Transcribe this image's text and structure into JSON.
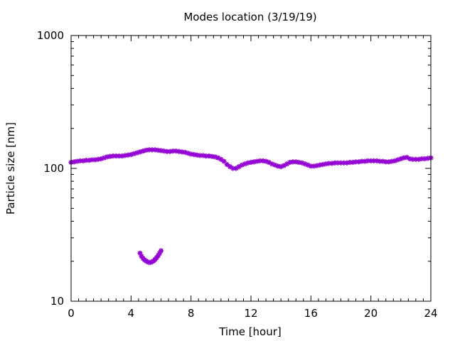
{
  "chart_data": {
    "type": "scatter",
    "title": "Modes location (3/19/19)",
    "xlabel": "Time [hour]",
    "ylabel": "Particle size [nm]",
    "xlim": [
      0,
      24
    ],
    "ylim": [
      10,
      1000
    ],
    "yscale": "log",
    "xticks": [
      0,
      4,
      8,
      12,
      16,
      20,
      24
    ],
    "xtick_labels": [
      "0",
      "4",
      "8",
      "12",
      "16",
      "20",
      "24"
    ],
    "yticks": [
      10,
      100,
      1000
    ],
    "ytick_labels": [
      "10",
      "100",
      "1000"
    ],
    "grid": false,
    "marker_color": "#9400D3",
    "series": [
      {
        "x": [
          0.0,
          0.2,
          0.4,
          0.6,
          0.8,
          1.0,
          1.2,
          1.4,
          1.6,
          1.8,
          2.0,
          2.2,
          2.4,
          2.6,
          2.8,
          3.0,
          3.2,
          3.4,
          3.6,
          3.8,
          4.0,
          4.2,
          4.4,
          4.6,
          4.8,
          5.0,
          5.2,
          5.4,
          5.6,
          5.8,
          6.0,
          6.2,
          6.4,
          6.6,
          6.8,
          7.0,
          7.2,
          7.4,
          7.6,
          7.8,
          8.0,
          8.2,
          8.4,
          8.6,
          8.8,
          9.0,
          9.2,
          9.4,
          9.6,
          9.8,
          10.0,
          10.2,
          10.4,
          10.6,
          10.8,
          11.0,
          11.2,
          11.4,
          11.6,
          11.8,
          12.0,
          12.2,
          12.4,
          12.6,
          12.8,
          13.0,
          13.2,
          13.4,
          13.6,
          13.8,
          14.0,
          14.2,
          14.4,
          14.6,
          14.8,
          15.0,
          15.2,
          15.4,
          15.6,
          15.8,
          16.0,
          16.2,
          16.4,
          16.6,
          16.8,
          17.0,
          17.2,
          17.4,
          17.6,
          17.8,
          18.0,
          18.2,
          18.4,
          18.6,
          18.8,
          19.0,
          19.2,
          19.4,
          19.6,
          19.8,
          20.0,
          20.2,
          20.4,
          20.6,
          20.8,
          21.0,
          21.2,
          21.4,
          21.6,
          21.8,
          22.0,
          22.2,
          22.4,
          22.6,
          22.8,
          23.0,
          23.2,
          23.4,
          23.6,
          23.8,
          24.0
        ],
        "y": [
          111,
          112,
          113,
          114,
          114,
          115,
          115,
          116,
          116,
          117,
          118,
          120,
          122,
          123,
          124,
          124,
          124,
          124,
          125,
          126,
          127,
          129,
          131,
          133,
          135,
          137,
          138,
          138,
          138,
          137,
          136,
          135,
          134,
          134,
          135,
          135,
          134,
          133,
          132,
          130,
          128,
          127,
          126,
          125,
          125,
          124,
          124,
          123,
          122,
          120,
          117,
          113,
          107,
          103,
          100,
          100,
          103,
          106,
          108,
          110,
          111,
          112,
          113,
          114,
          114,
          113,
          111,
          108,
          106,
          104,
          103,
          105,
          108,
          111,
          112,
          112,
          111,
          110,
          108,
          106,
          104,
          104,
          105,
          106,
          107,
          108,
          109,
          109,
          110,
          110,
          110,
          110,
          110,
          111,
          111,
          112,
          112,
          113,
          113,
          114,
          114,
          114,
          114,
          113,
          113,
          112,
          112,
          113,
          114,
          116,
          118,
          120,
          121,
          118,
          117,
          117,
          117,
          118,
          118,
          119,
          120
        ],
        "_note_unused": ""
      },
      {
        "x": [
          4.6,
          4.7,
          4.8,
          4.9,
          5.0,
          5.1,
          5.2,
          5.3,
          5.4,
          5.5,
          5.6,
          5.7,
          5.8,
          5.9,
          6.0
        ],
        "y": [
          23.0,
          21.8,
          21.0,
          20.5,
          20.1,
          19.8,
          19.6,
          19.6,
          19.8,
          20.1,
          20.6,
          21.2,
          22.0,
          22.9,
          24.0
        ]
      }
    ]
  }
}
